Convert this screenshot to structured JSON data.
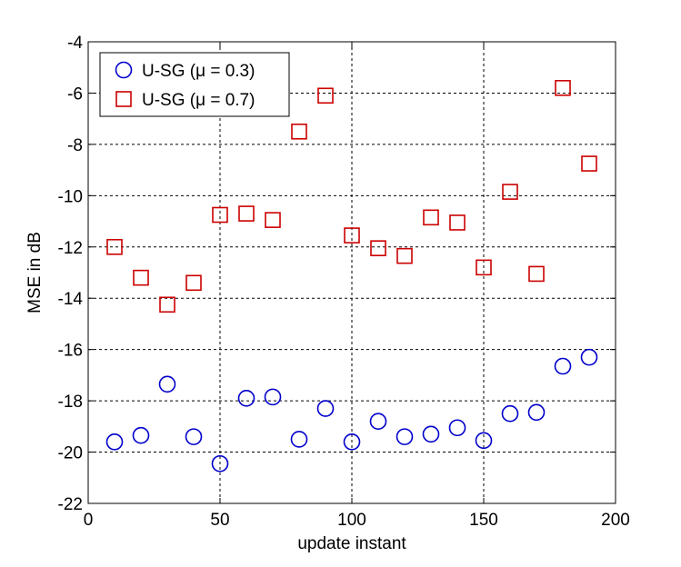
{
  "chart_data": {
    "type": "scatter",
    "title": "",
    "xlabel": "update instant",
    "ylabel": "MSE in dB",
    "xlim": [
      0,
      200
    ],
    "ylim": [
      -22,
      -4
    ],
    "xticks": [
      0,
      50,
      100,
      150,
      200
    ],
    "yticks": [
      -4,
      -6,
      -8,
      -10,
      -12,
      -14,
      -16,
      -18,
      -20,
      -22
    ],
    "grid": true,
    "legend_position": "top-left",
    "x": [
      10,
      20,
      30,
      40,
      50,
      60,
      70,
      80,
      90,
      100,
      110,
      120,
      130,
      140,
      150,
      160,
      170,
      180,
      190
    ],
    "series": [
      {
        "name": "U-SG (μ = 0.3)",
        "marker": "circle",
        "color": "#0000cc",
        "values": [
          -19.6,
          -19.35,
          -17.35,
          -19.4,
          -20.45,
          -17.9,
          -17.85,
          -19.5,
          -18.3,
          -19.6,
          -18.8,
          -19.4,
          -19.3,
          -19.05,
          -19.55,
          -18.5,
          -18.45,
          -16.65,
          -16.3
        ]
      },
      {
        "name": "U-SG (μ = 0.7)",
        "marker": "square",
        "color": "#cc0000",
        "values": [
          -12.0,
          -13.2,
          -14.25,
          -13.4,
          -10.75,
          -10.7,
          -10.95,
          -7.5,
          -6.1,
          -11.55,
          -12.05,
          -12.35,
          -10.85,
          -11.05,
          -12.8,
          -9.85,
          -13.05,
          -5.8,
          -8.75
        ]
      }
    ]
  }
}
